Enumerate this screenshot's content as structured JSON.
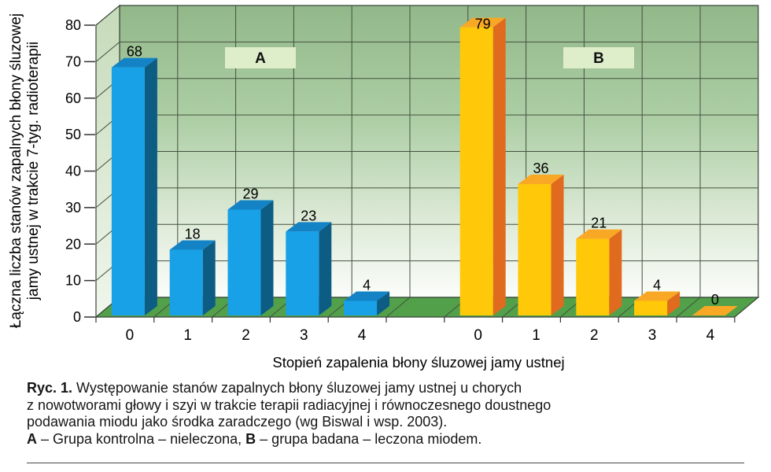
{
  "chart_data": {
    "type": "bar",
    "title": "",
    "xlabel": "Stopień zapalenia błony śluzowej jamy ustnej",
    "ylabel_line1": "Łączna liczba stanów zapalnych błony śluzowej",
    "ylabel_line2": "jamy ustnej w trakcie 7-tyg. radioterapii",
    "ylim": [
      0,
      80
    ],
    "y_ticks": [
      0,
      10,
      20,
      30,
      40,
      50,
      60,
      70,
      80
    ],
    "categories": [
      "0",
      "1",
      "2",
      "3",
      "4"
    ],
    "series": [
      {
        "name": "A",
        "values": [
          68,
          18,
          29,
          23,
          4
        ],
        "colors": {
          "front": "#18A1E6",
          "top": "#1383C6",
          "side": "#0D5C84"
        }
      },
      {
        "name": "B",
        "values": [
          79,
          36,
          21,
          4,
          0
        ],
        "colors": {
          "front": "#FFC808",
          "top": "#F9A825",
          "side": "#E06B1F"
        }
      }
    ],
    "group_labels": [
      "A",
      "B"
    ],
    "grid": true,
    "legend_position": "inside-top",
    "colors": {
      "floor": "#52A04A",
      "wall_top": "#92B88A",
      "wall_bottom": "#FBFDFA",
      "left_wall_top": "#C5DBB9",
      "left_wall_bottom": "#F0F6EC",
      "grid": "#44513F",
      "outline": "#39443A",
      "label_box": "#DEEDCA",
      "tick": "#333333"
    }
  },
  "caption": {
    "fig_label": "Ryc. 1.",
    "line1_rest": " Występowanie stanów zapalnych błony śluzowej jamy ustnej u chorych",
    "line2": "z nowotworami głowy i szyi w trakcie terapii radiacyjnej i równoczesnego doustnego",
    "line3": "podawania miodu jako środka zaradczego (wg Biswal i wsp. 2003).",
    "legend_a_key": "A",
    "legend_a_text": " – Grupa kontrolna – nieleczona, ",
    "legend_b_key": "B",
    "legend_b_text": " – grupa badana – leczona miodem."
  }
}
